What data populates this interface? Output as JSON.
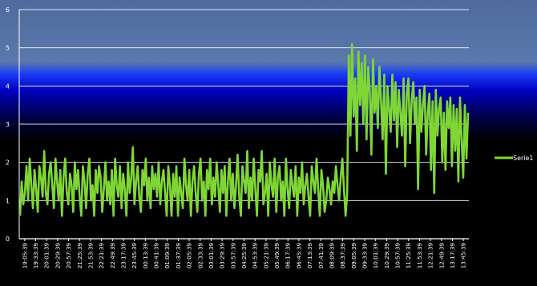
{
  "chart_data": {
    "type": "line",
    "title": "",
    "xlabel": "",
    "ylabel": "",
    "ylim": [
      0,
      6
    ],
    "yticks": [
      0,
      1,
      2,
      3,
      4,
      5,
      6
    ],
    "grid": true,
    "legend_position": "right",
    "x_tick_labels": [
      "19:05:39",
      "19:33:39",
      "20:01:39",
      "20:29:39",
      "20:57:39",
      "21:25:39",
      "21:53:39",
      "22:21:39",
      "22:49:39",
      "23:17:39",
      "23:45:39",
      "00:13:39",
      "00:41:39",
      "01:09:39",
      "01:37:39",
      "02:05:39",
      "02:33:39",
      "03:01:39",
      "03:29:39",
      "03:57:39",
      "04:25:39",
      "04:53:39",
      "05:21:39",
      "05:49:39",
      "06:17:39",
      "06:45:39",
      "07:13:39",
      "07:41:39",
      "08:09:39",
      "08:37:39",
      "09:05:39",
      "09:33:39",
      "10:01:39",
      "10:29:39",
      "10:57:39",
      "11:25:39",
      "11:53:39",
      "12:21:39",
      "12:49:39",
      "13:17:39",
      "13:45:39"
    ],
    "series": [
      {
        "name": "Serie1",
        "color": "#7fd635",
        "values": [
          0.6,
          1.5,
          0.9,
          1.2,
          1.9,
          1.0,
          2.1,
          1.4,
          0.8,
          1.8,
          1.3,
          0.7,
          1.9,
          1.6,
          1.1,
          2.3,
          1.2,
          0.9,
          1.7,
          2.0,
          1.4,
          0.8,
          2.1,
          1.5,
          1.0,
          1.8,
          0.6,
          1.6,
          2.1,
          1.2,
          0.9,
          1.7,
          1.4,
          0.7,
          2.0,
          1.3,
          1.8,
          1.1,
          0.6,
          1.9,
          1.5,
          0.8,
          1.7,
          2.1,
          1.0,
          1.4,
          0.6,
          1.8,
          1.2,
          1.9,
          1.6,
          0.7,
          1.3,
          2.0,
          1.0,
          1.5,
          0.9,
          1.8,
          0.6,
          2.1,
          1.4,
          1.1,
          1.9,
          0.8,
          1.7,
          1.3,
          0.6,
          2.0,
          1.2,
          1.6,
          2.4,
          0.9,
          1.5,
          1.9,
          1.1,
          0.7,
          1.8,
          1.4,
          2.1,
          1.0,
          1.6,
          0.8,
          1.9,
          1.3,
          1.7,
          1.1,
          2.0,
          0.9,
          1.5,
          1.8,
          1.2,
          0.6,
          1.9,
          1.4,
          0.6,
          1.7,
          1.1,
          1.9,
          0.6,
          1.6,
          1.2,
          0.8,
          2.1,
          1.4,
          1.0,
          1.8,
          0.6,
          1.5,
          1.9,
          1.2,
          0.7,
          1.7,
          2.1,
          1.0,
          1.5,
          0.6,
          1.8,
          1.3,
          2.1,
          0.9,
          1.6,
          1.1,
          2.0,
          1.4,
          0.7,
          1.8,
          1.2,
          1.9,
          0.6,
          1.5,
          2.1,
          1.0,
          1.7,
          0.8,
          1.4,
          2.2,
          1.1,
          0.6,
          1.9,
          1.5,
          1.2,
          2.3,
          0.8,
          1.6,
          1.0,
          2.1,
          1.3,
          0.6,
          1.8,
          1.5,
          2.3,
          0.9,
          1.2,
          1.7,
          0.6,
          2.0,
          1.4,
          1.1,
          2.1,
          0.7,
          1.6,
          1.9,
          1.0,
          1.5,
          0.6,
          2.1,
          1.3,
          0.8,
          1.8,
          1.4,
          1.1,
          1.9,
          0.6,
          1.6,
          1.2,
          2.0,
          0.9,
          1.4,
          1.7,
          1.1,
          0.6,
          1.9,
          1.5,
          1.2,
          2.1,
          1.3,
          0.6,
          1.8,
          1.4,
          0.7,
          1.0,
          1.6,
          1.3,
          0.9,
          1.5,
          1.2,
          1.9,
          1.4,
          1.0,
          1.6,
          2.1,
          1.3,
          0.6,
          1.2,
          4.8,
          2.7,
          5.1,
          3.2,
          4.2,
          2.3,
          4.9,
          3.5,
          4.6,
          3.0,
          4.8,
          2.6,
          4.5,
          3.9,
          2.2,
          4.7,
          3.3,
          4.0,
          2.9,
          4.5,
          3.6,
          2.6,
          4.3,
          1.7,
          4.0,
          3.4,
          2.8,
          4.3,
          3.1,
          4.1,
          2.4,
          3.9,
          3.3,
          2.7,
          4.2,
          1.9,
          3.8,
          4.2,
          2.5,
          3.6,
          4.1,
          3.0,
          3.7,
          1.3,
          3.9,
          2.8,
          3.5,
          4.0,
          2.2,
          3.3,
          3.8,
          1.8,
          3.6,
          1.2,
          3.9,
          2.7,
          3.4,
          3.7,
          2.0,
          3.3,
          1.8,
          3.6,
          2.9,
          3.7,
          1.9,
          3.5,
          2.3,
          3.4,
          1.5,
          3.7,
          2.6,
          1.6,
          3.5,
          2.1,
          3.3
        ]
      }
    ]
  }
}
